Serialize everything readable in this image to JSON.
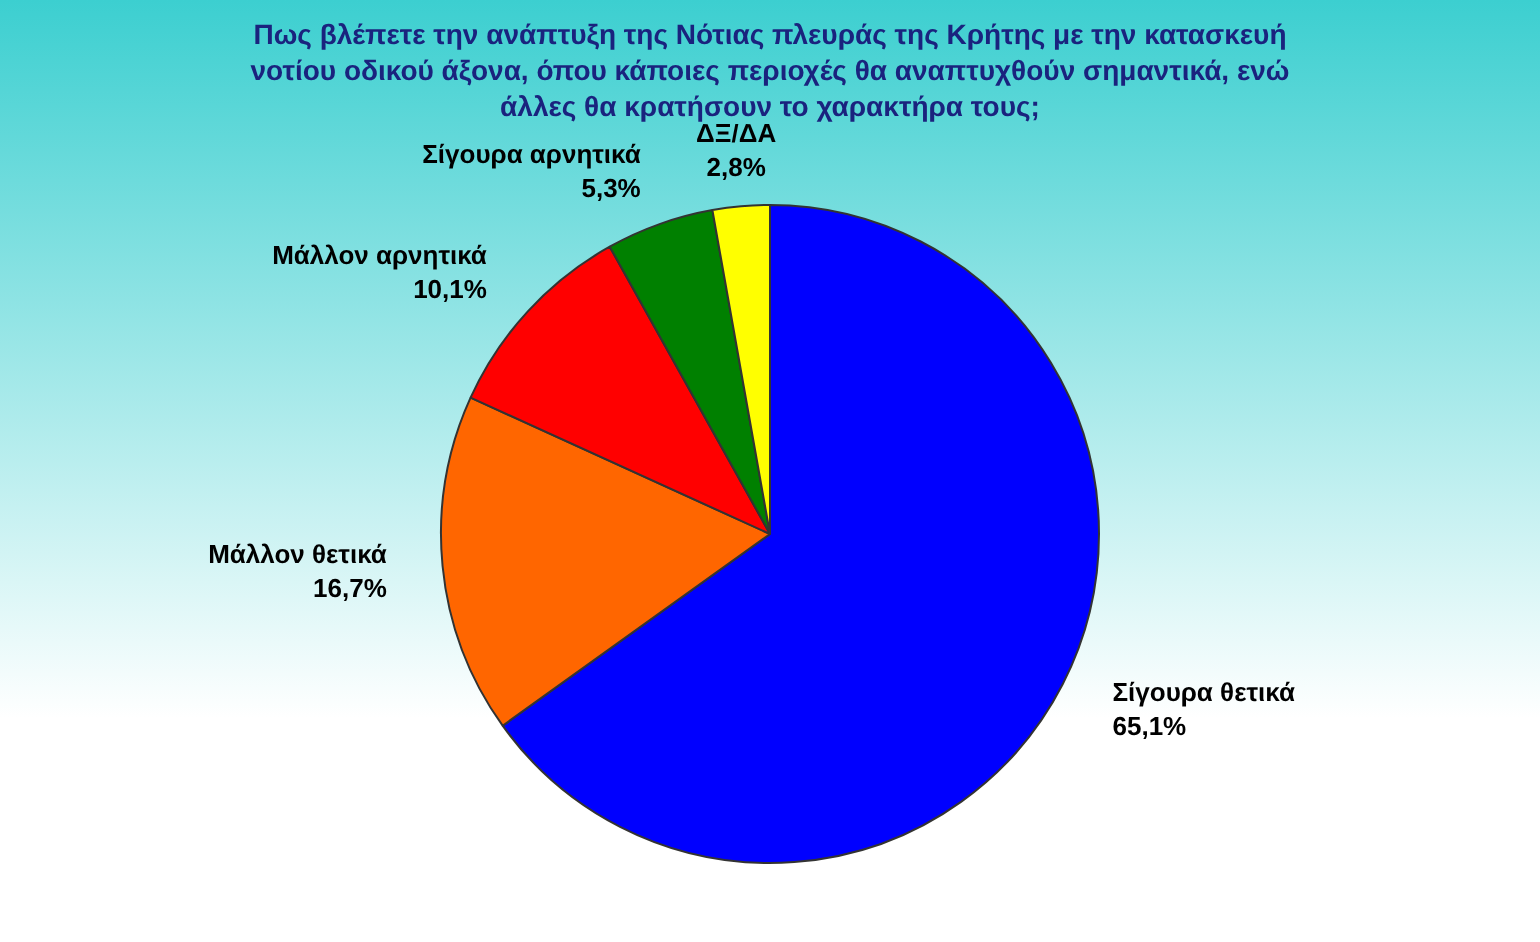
{
  "chart_data": {
    "type": "pie",
    "title": "Πως βλέπετε την ανάπτυξη της Νότιας πλευράς της Κρήτης με την κατασκευή νοτίου οδικού άξονα, όπου κάποιες περιοχές θα αναπτυχθούν σημαντικά, ενώ άλλες θα κρατήσουν το χαρακτήρα τους;",
    "categories": [
      "Σίγουρα θετικά",
      "Μάλλον θετικά",
      "Μάλλον αρνητικά",
      "Σίγουρα αρνητικά",
      "ΔΞ/ΔΑ"
    ],
    "values": [
      65.1,
      16.7,
      10.1,
      5.3,
      2.8
    ],
    "value_labels": [
      "65,1%",
      "16,7%",
      "10,1%",
      "5,3%",
      "2,8%"
    ],
    "colors": [
      "#0000ff",
      "#ff6600",
      "#ff0000",
      "#008000",
      "#ffff00"
    ]
  }
}
